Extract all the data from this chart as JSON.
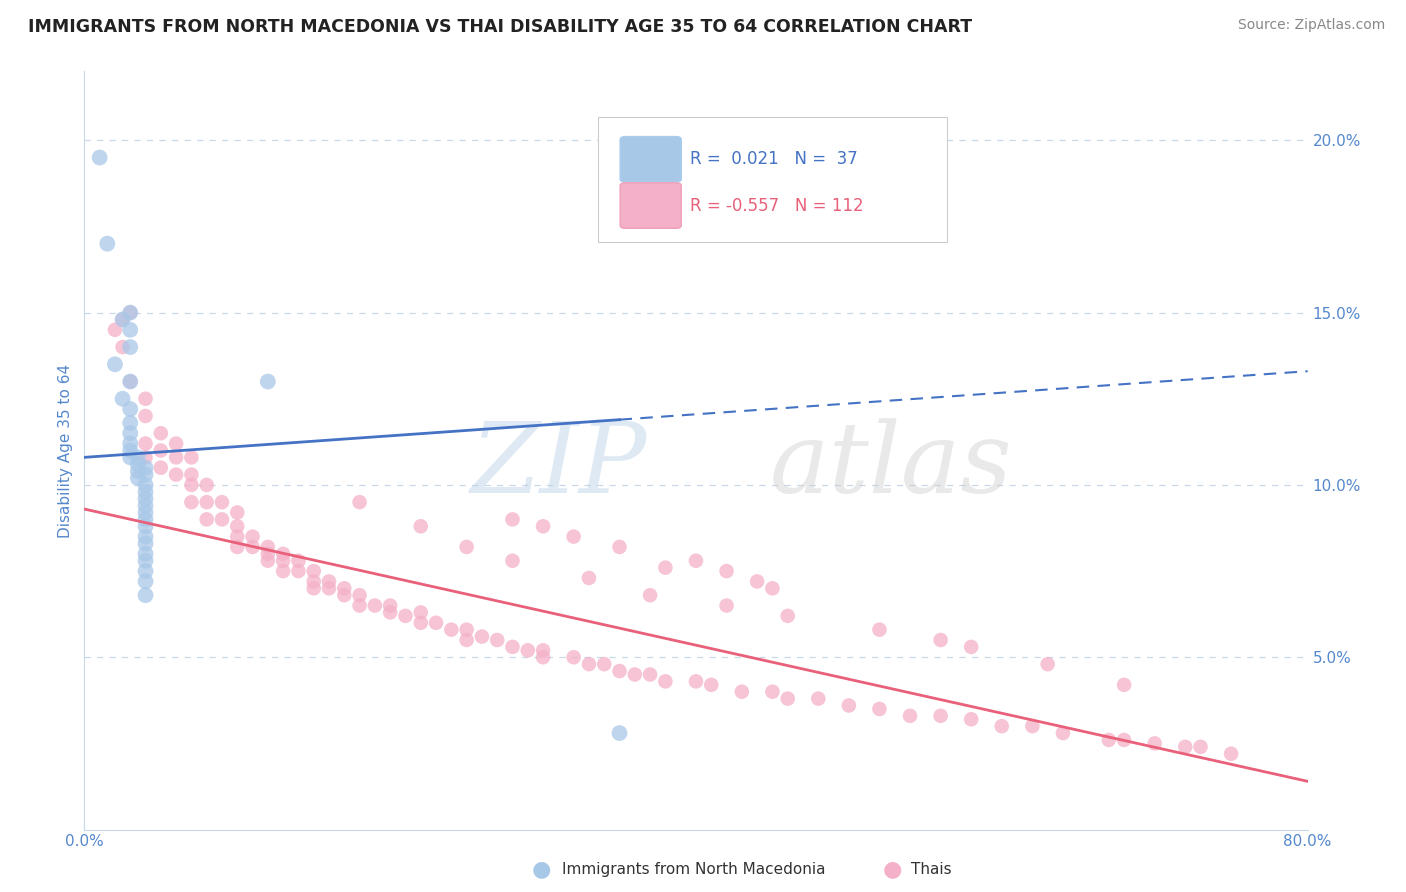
{
  "title": "IMMIGRANTS FROM NORTH MACEDONIA VS THAI DISABILITY AGE 35 TO 64 CORRELATION CHART",
  "source_text": "Source: ZipAtlas.com",
  "ylabel": "Disability Age 35 to 64",
  "xlim": [
    0.0,
    0.8
  ],
  "ylim": [
    0.0,
    0.22
  ],
  "xticks": [
    0.0,
    0.1,
    0.2,
    0.3,
    0.4,
    0.5,
    0.6,
    0.7,
    0.8
  ],
  "xticklabels": [
    "0.0%",
    "",
    "",
    "",
    "",
    "",
    "",
    "",
    "80.0%"
  ],
  "yticks_right": [
    0.05,
    0.1,
    0.15,
    0.2
  ],
  "ytick_labels_right": [
    "5.0%",
    "10.0%",
    "15.0%",
    "20.0%"
  ],
  "blue_color": "#a8c8e8",
  "pink_color": "#f4b0c8",
  "blue_line_color": "#4472c4",
  "pink_line_color": "#e8607a",
  "axis_color": "#5588cc",
  "grid_color": "#c8d8e8",
  "nm_line_x0": 0.0,
  "nm_line_y0": 0.108,
  "nm_line_x1": 0.8,
  "nm_line_y1": 0.133,
  "nm_line_solid_end": 0.35,
  "thai_line_x0": 0.0,
  "thai_line_y0": 0.093,
  "thai_line_x1": 0.8,
  "thai_line_y1": 0.014,
  "north_macedonia_x": [
    0.01,
    0.015,
    0.02,
    0.025,
    0.025,
    0.03,
    0.03,
    0.03,
    0.03,
    0.03,
    0.03,
    0.03,
    0.03,
    0.03,
    0.03,
    0.035,
    0.035,
    0.035,
    0.035,
    0.04,
    0.04,
    0.04,
    0.04,
    0.04,
    0.04,
    0.04,
    0.04,
    0.04,
    0.04,
    0.04,
    0.04,
    0.04,
    0.04,
    0.12,
    0.35,
    0.04,
    0.04
  ],
  "north_macedonia_y": [
    0.195,
    0.17,
    0.135,
    0.148,
    0.125,
    0.15,
    0.145,
    0.14,
    0.13,
    0.122,
    0.118,
    0.115,
    0.112,
    0.11,
    0.108,
    0.108,
    0.106,
    0.104,
    0.102,
    0.105,
    0.103,
    0.1,
    0.098,
    0.096,
    0.094,
    0.092,
    0.09,
    0.088,
    0.085,
    0.083,
    0.08,
    0.078,
    0.075,
    0.13,
    0.028,
    0.072,
    0.068
  ],
  "thai_x": [
    0.02,
    0.025,
    0.025,
    0.03,
    0.03,
    0.04,
    0.04,
    0.04,
    0.04,
    0.05,
    0.05,
    0.05,
    0.06,
    0.06,
    0.06,
    0.07,
    0.07,
    0.07,
    0.07,
    0.08,
    0.08,
    0.08,
    0.09,
    0.09,
    0.1,
    0.1,
    0.1,
    0.1,
    0.11,
    0.11,
    0.12,
    0.12,
    0.12,
    0.13,
    0.13,
    0.13,
    0.14,
    0.14,
    0.15,
    0.15,
    0.15,
    0.16,
    0.16,
    0.17,
    0.17,
    0.18,
    0.18,
    0.19,
    0.2,
    0.2,
    0.21,
    0.22,
    0.22,
    0.23,
    0.24,
    0.25,
    0.25,
    0.26,
    0.27,
    0.28,
    0.29,
    0.3,
    0.3,
    0.32,
    0.33,
    0.34,
    0.35,
    0.36,
    0.37,
    0.38,
    0.4,
    0.41,
    0.43,
    0.45,
    0.46,
    0.48,
    0.5,
    0.52,
    0.54,
    0.56,
    0.58,
    0.6,
    0.62,
    0.64,
    0.67,
    0.68,
    0.7,
    0.72,
    0.73,
    0.75,
    0.56,
    0.3,
    0.35,
    0.4,
    0.42,
    0.45,
    0.28,
    0.32,
    0.38,
    0.44,
    0.18,
    0.22,
    0.25,
    0.28,
    0.33,
    0.37,
    0.42,
    0.46,
    0.52,
    0.58,
    0.63,
    0.68
  ],
  "thai_y": [
    0.145,
    0.148,
    0.14,
    0.15,
    0.13,
    0.125,
    0.12,
    0.112,
    0.108,
    0.115,
    0.11,
    0.105,
    0.112,
    0.108,
    0.103,
    0.108,
    0.103,
    0.1,
    0.095,
    0.1,
    0.095,
    0.09,
    0.095,
    0.09,
    0.092,
    0.088,
    0.085,
    0.082,
    0.085,
    0.082,
    0.082,
    0.08,
    0.078,
    0.08,
    0.078,
    0.075,
    0.078,
    0.075,
    0.075,
    0.072,
    0.07,
    0.072,
    0.07,
    0.07,
    0.068,
    0.068,
    0.065,
    0.065,
    0.065,
    0.063,
    0.062,
    0.063,
    0.06,
    0.06,
    0.058,
    0.058,
    0.055,
    0.056,
    0.055,
    0.053,
    0.052,
    0.052,
    0.05,
    0.05,
    0.048,
    0.048,
    0.046,
    0.045,
    0.045,
    0.043,
    0.043,
    0.042,
    0.04,
    0.04,
    0.038,
    0.038,
    0.036,
    0.035,
    0.033,
    0.033,
    0.032,
    0.03,
    0.03,
    0.028,
    0.026,
    0.026,
    0.025,
    0.024,
    0.024,
    0.022,
    0.055,
    0.088,
    0.082,
    0.078,
    0.075,
    0.07,
    0.09,
    0.085,
    0.076,
    0.072,
    0.095,
    0.088,
    0.082,
    0.078,
    0.073,
    0.068,
    0.065,
    0.062,
    0.058,
    0.053,
    0.048,
    0.042
  ]
}
